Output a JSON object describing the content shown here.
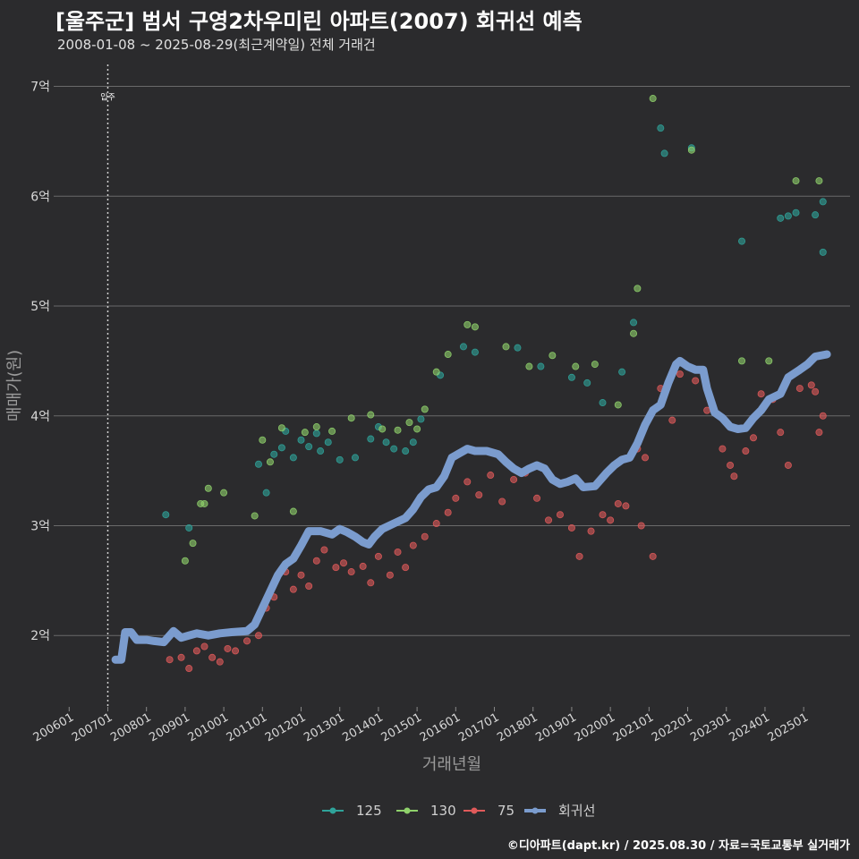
{
  "header": {
    "title": "[울주군] 범서 구영2차우미린 아파트(2007) 회귀선 예측",
    "subtitle": "2008-01-08 ~ 2025-08-29(최근계약일) 전체 거래건",
    "caption": "©디아파트(dapt.kr) / 2025.08.30 / 자료=국토교통부 실거래가"
  },
  "chart_data": {
    "type": "scatter",
    "title": "[울주군] 범서 구영2차우미린 아파트(2007) 회귀선 예측",
    "xlabel": "거래년월",
    "ylabel": "매매가(원)",
    "xlim": [
      2005.6,
      2026.2
    ],
    "ylim": [
      1.35,
      7.2
    ],
    "yticks": [
      {
        "v": 2,
        "label": "2억"
      },
      {
        "v": 3,
        "label": "3억"
      },
      {
        "v": 4,
        "label": "4억"
      },
      {
        "v": 5,
        "label": "5억"
      },
      {
        "v": 6,
        "label": "6억"
      },
      {
        "v": 7,
        "label": "7억"
      }
    ],
    "xticks": [
      {
        "v": 2006,
        "label": "200601"
      },
      {
        "v": 2007,
        "label": "200701"
      },
      {
        "v": 2008,
        "label": "200801"
      },
      {
        "v": 2009,
        "label": "200901"
      },
      {
        "v": 2010,
        "label": "201001"
      },
      {
        "v": 2011,
        "label": "201101"
      },
      {
        "v": 2012,
        "label": "201201"
      },
      {
        "v": 2013,
        "label": "201301"
      },
      {
        "v": 2014,
        "label": "201401"
      },
      {
        "v": 2015,
        "label": "201501"
      },
      {
        "v": 2016,
        "label": "201601"
      },
      {
        "v": 2017,
        "label": "201701"
      },
      {
        "v": 2018,
        "label": "201801"
      },
      {
        "v": 2019,
        "label": "201901"
      },
      {
        "v": 2020,
        "label": "202001"
      },
      {
        "v": 2021,
        "label": "202101"
      },
      {
        "v": 2022,
        "label": "202201"
      },
      {
        "v": 2023,
        "label": "202301"
      },
      {
        "v": 2024,
        "label": "202401"
      },
      {
        "v": 2025,
        "label": "202501"
      }
    ],
    "annotation": {
      "x": 2007.0,
      "label": "입주"
    },
    "colors": {
      "125": "#2fa39a",
      "130": "#8fd16b",
      "75": "#e05a5a",
      "회귀선": "#7b9cce"
    },
    "legend": [
      "125",
      "130",
      "75",
      "회귀선"
    ],
    "series": [
      {
        "name": "125",
        "points": [
          [
            2008.5,
            3.1
          ],
          [
            2009.1,
            2.98
          ],
          [
            2010.9,
            3.56
          ],
          [
            2011.1,
            3.3
          ],
          [
            2011.3,
            3.65
          ],
          [
            2011.5,
            3.71
          ],
          [
            2011.6,
            3.86
          ],
          [
            2011.8,
            3.62
          ],
          [
            2012.0,
            3.78
          ],
          [
            2012.2,
            3.72
          ],
          [
            2012.4,
            3.84
          ],
          [
            2012.5,
            3.68
          ],
          [
            2012.7,
            3.76
          ],
          [
            2013.0,
            3.6
          ],
          [
            2013.4,
            3.62
          ],
          [
            2013.8,
            3.79
          ],
          [
            2014.0,
            3.9
          ],
          [
            2014.2,
            3.76
          ],
          [
            2014.4,
            3.7
          ],
          [
            2014.7,
            3.68
          ],
          [
            2014.9,
            3.76
          ],
          [
            2015.1,
            3.97
          ],
          [
            2015.6,
            4.37
          ],
          [
            2016.2,
            4.63
          ],
          [
            2016.5,
            4.58
          ],
          [
            2017.6,
            4.62
          ],
          [
            2018.2,
            4.45
          ],
          [
            2019.0,
            4.35
          ],
          [
            2019.4,
            4.3
          ],
          [
            2019.8,
            4.12
          ],
          [
            2020.3,
            4.4
          ],
          [
            2020.6,
            4.85
          ],
          [
            2021.3,
            6.62
          ],
          [
            2021.4,
            6.39
          ],
          [
            2022.1,
            6.44
          ],
          [
            2023.4,
            5.59
          ],
          [
            2024.4,
            5.8
          ],
          [
            2024.6,
            5.82
          ],
          [
            2024.8,
            5.85
          ],
          [
            2025.3,
            5.83
          ],
          [
            2025.5,
            5.95
          ],
          [
            2025.5,
            5.49
          ]
        ]
      },
      {
        "name": "130",
        "points": [
          [
            2009.0,
            2.68
          ],
          [
            2009.2,
            2.84
          ],
          [
            2009.4,
            3.2
          ],
          [
            2009.5,
            3.2
          ],
          [
            2009.6,
            3.34
          ],
          [
            2010.0,
            3.3
          ],
          [
            2010.8,
            3.09
          ],
          [
            2011.0,
            3.78
          ],
          [
            2011.2,
            3.58
          ],
          [
            2011.5,
            3.89
          ],
          [
            2011.8,
            3.13
          ],
          [
            2012.1,
            3.85
          ],
          [
            2012.4,
            3.9
          ],
          [
            2012.8,
            3.86
          ],
          [
            2013.3,
            3.98
          ],
          [
            2013.8,
            4.01
          ],
          [
            2014.1,
            3.88
          ],
          [
            2014.5,
            3.87
          ],
          [
            2014.8,
            3.94
          ],
          [
            2015.0,
            3.88
          ],
          [
            2015.2,
            4.06
          ],
          [
            2015.5,
            4.4
          ],
          [
            2015.8,
            4.56
          ],
          [
            2016.3,
            4.83
          ],
          [
            2016.5,
            4.81
          ],
          [
            2017.3,
            4.63
          ],
          [
            2017.9,
            4.45
          ],
          [
            2018.5,
            4.55
          ],
          [
            2019.1,
            4.45
          ],
          [
            2019.6,
            4.47
          ],
          [
            2020.2,
            4.1
          ],
          [
            2020.6,
            4.75
          ],
          [
            2020.7,
            5.16
          ],
          [
            2021.1,
            6.89
          ],
          [
            2022.1,
            6.42
          ],
          [
            2023.4,
            4.5
          ],
          [
            2024.1,
            4.5
          ],
          [
            2024.8,
            6.14
          ],
          [
            2025.4,
            6.14
          ]
        ]
      },
      {
        "name": "75",
        "points": [
          [
            2008.6,
            1.78
          ],
          [
            2008.9,
            1.8
          ],
          [
            2009.1,
            1.7
          ],
          [
            2009.3,
            1.86
          ],
          [
            2009.5,
            1.9
          ],
          [
            2009.7,
            1.8
          ],
          [
            2009.9,
            1.76
          ],
          [
            2010.1,
            1.88
          ],
          [
            2010.3,
            1.86
          ],
          [
            2010.6,
            1.95
          ],
          [
            2010.9,
            2.0
          ],
          [
            2011.1,
            2.25
          ],
          [
            2011.3,
            2.35
          ],
          [
            2011.6,
            2.58
          ],
          [
            2011.8,
            2.42
          ],
          [
            2012.0,
            2.55
          ],
          [
            2012.2,
            2.45
          ],
          [
            2012.4,
            2.68
          ],
          [
            2012.6,
            2.78
          ],
          [
            2012.9,
            2.62
          ],
          [
            2013.1,
            2.66
          ],
          [
            2013.3,
            2.58
          ],
          [
            2013.6,
            2.63
          ],
          [
            2013.8,
            2.48
          ],
          [
            2014.0,
            2.72
          ],
          [
            2014.3,
            2.55
          ],
          [
            2014.5,
            2.76
          ],
          [
            2014.7,
            2.62
          ],
          [
            2014.9,
            2.82
          ],
          [
            2015.2,
            2.9
          ],
          [
            2015.5,
            3.02
          ],
          [
            2015.8,
            3.12
          ],
          [
            2016.0,
            3.25
          ],
          [
            2016.3,
            3.4
          ],
          [
            2016.6,
            3.28
          ],
          [
            2016.9,
            3.46
          ],
          [
            2017.2,
            3.22
          ],
          [
            2017.5,
            3.42
          ],
          [
            2017.8,
            3.48
          ],
          [
            2018.1,
            3.25
          ],
          [
            2018.4,
            3.05
          ],
          [
            2018.7,
            3.1
          ],
          [
            2019.0,
            2.98
          ],
          [
            2019.2,
            2.72
          ],
          [
            2019.5,
            2.95
          ],
          [
            2019.8,
            3.1
          ],
          [
            2020.0,
            3.05
          ],
          [
            2020.2,
            3.2
          ],
          [
            2020.4,
            3.18
          ],
          [
            2020.7,
            3.7
          ],
          [
            2020.8,
            3.0
          ],
          [
            2020.9,
            3.62
          ],
          [
            2021.1,
            2.72
          ],
          [
            2021.3,
            4.25
          ],
          [
            2021.6,
            3.96
          ],
          [
            2021.8,
            4.38
          ],
          [
            2022.2,
            4.32
          ],
          [
            2022.5,
            4.05
          ],
          [
            2022.9,
            3.7
          ],
          [
            2023.1,
            3.55
          ],
          [
            2023.2,
            3.45
          ],
          [
            2023.5,
            3.68
          ],
          [
            2023.7,
            3.8
          ],
          [
            2023.9,
            4.2
          ],
          [
            2024.2,
            4.15
          ],
          [
            2024.4,
            3.85
          ],
          [
            2024.6,
            3.55
          ],
          [
            2024.9,
            4.25
          ],
          [
            2025.2,
            4.28
          ],
          [
            2025.3,
            4.22
          ],
          [
            2025.4,
            3.85
          ],
          [
            2025.5,
            4.0
          ]
        ]
      },
      {
        "name": "회귀선",
        "points": [
          [
            2007.2,
            1.78
          ],
          [
            2007.35,
            1.78
          ],
          [
            2007.45,
            2.03
          ],
          [
            2007.6,
            2.03
          ],
          [
            2007.75,
            1.96
          ],
          [
            2008.0,
            1.96
          ],
          [
            2008.2,
            1.95
          ],
          [
            2008.45,
            1.94
          ],
          [
            2008.7,
            2.04
          ],
          [
            2008.9,
            1.98
          ],
          [
            2009.1,
            2.0
          ],
          [
            2009.3,
            2.02
          ],
          [
            2009.6,
            2.0
          ],
          [
            2009.9,
            2.02
          ],
          [
            2010.2,
            2.03
          ],
          [
            2010.6,
            2.04
          ],
          [
            2010.8,
            2.1
          ],
          [
            2011.0,
            2.25
          ],
          [
            2011.2,
            2.4
          ],
          [
            2011.4,
            2.55
          ],
          [
            2011.6,
            2.65
          ],
          [
            2011.8,
            2.7
          ],
          [
            2012.0,
            2.82
          ],
          [
            2012.2,
            2.95
          ],
          [
            2012.5,
            2.95
          ],
          [
            2012.8,
            2.92
          ],
          [
            2013.0,
            2.97
          ],
          [
            2013.2,
            2.94
          ],
          [
            2013.4,
            2.9
          ],
          [
            2013.6,
            2.85
          ],
          [
            2013.75,
            2.83
          ],
          [
            2013.9,
            2.9
          ],
          [
            2014.1,
            2.97
          ],
          [
            2014.4,
            3.02
          ],
          [
            2014.7,
            3.07
          ],
          [
            2014.9,
            3.15
          ],
          [
            2015.1,
            3.26
          ],
          [
            2015.3,
            3.33
          ],
          [
            2015.5,
            3.35
          ],
          [
            2015.7,
            3.45
          ],
          [
            2015.9,
            3.62
          ],
          [
            2016.1,
            3.66
          ],
          [
            2016.3,
            3.7
          ],
          [
            2016.5,
            3.68
          ],
          [
            2016.8,
            3.68
          ],
          [
            2017.1,
            3.65
          ],
          [
            2017.3,
            3.58
          ],
          [
            2017.5,
            3.52
          ],
          [
            2017.7,
            3.48
          ],
          [
            2017.9,
            3.52
          ],
          [
            2018.1,
            3.55
          ],
          [
            2018.3,
            3.52
          ],
          [
            2018.5,
            3.42
          ],
          [
            2018.7,
            3.38
          ],
          [
            2018.9,
            3.4
          ],
          [
            2019.1,
            3.43
          ],
          [
            2019.3,
            3.35
          ],
          [
            2019.6,
            3.36
          ],
          [
            2019.9,
            3.48
          ],
          [
            2020.1,
            3.55
          ],
          [
            2020.3,
            3.6
          ],
          [
            2020.5,
            3.62
          ],
          [
            2020.7,
            3.75
          ],
          [
            2020.9,
            3.92
          ],
          [
            2021.1,
            4.05
          ],
          [
            2021.3,
            4.1
          ],
          [
            2021.5,
            4.3
          ],
          [
            2021.7,
            4.47
          ],
          [
            2021.8,
            4.5
          ],
          [
            2022.0,
            4.45
          ],
          [
            2022.2,
            4.42
          ],
          [
            2022.4,
            4.42
          ],
          [
            2022.5,
            4.25
          ],
          [
            2022.7,
            4.03
          ],
          [
            2022.9,
            3.98
          ],
          [
            2023.1,
            3.9
          ],
          [
            2023.3,
            3.88
          ],
          [
            2023.5,
            3.89
          ],
          [
            2023.7,
            3.98
          ],
          [
            2023.9,
            4.05
          ],
          [
            2024.1,
            4.15
          ],
          [
            2024.4,
            4.2
          ],
          [
            2024.6,
            4.35
          ],
          [
            2024.9,
            4.42
          ],
          [
            2025.1,
            4.47
          ],
          [
            2025.3,
            4.54
          ],
          [
            2025.6,
            4.56
          ]
        ]
      }
    ]
  }
}
